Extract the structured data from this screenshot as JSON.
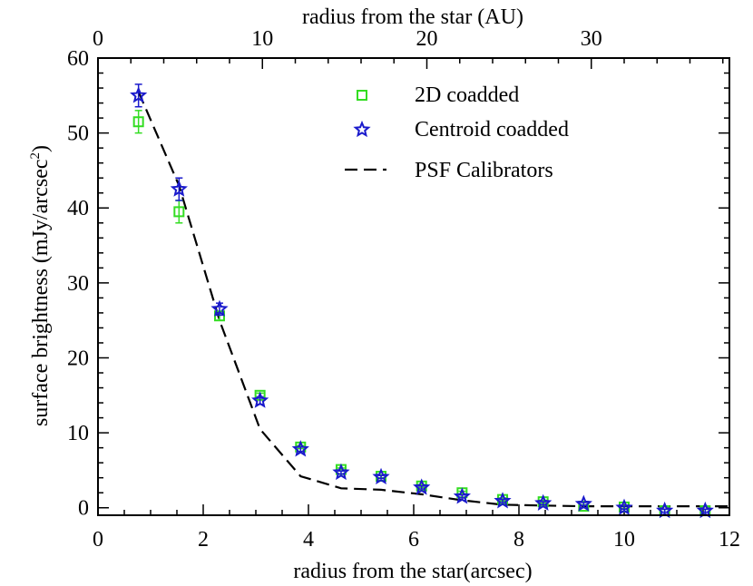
{
  "chart_data": {
    "type": "scatter",
    "xlabel": "radius from the star(arcsec)",
    "ylabel": "surface brightness (mJy/arcsec",
    "ylabel_sup": "2",
    "ylabel_close": ")",
    "top_xlabel": "radius from the star (AU)",
    "xlim": [
      0,
      12
    ],
    "ylim": [
      -1,
      60
    ],
    "top_xlim": [
      0,
      38.4
    ],
    "x_ticks": [
      0,
      2,
      4,
      6,
      8,
      10,
      12
    ],
    "y_ticks": [
      0,
      10,
      20,
      30,
      40,
      50,
      60
    ],
    "top_x_ticks": [
      0,
      10,
      20,
      30
    ],
    "legend_position": "top-right",
    "series": [
      {
        "name": "2D coadded",
        "marker": "square",
        "color": "#33dd22",
        "points": [
          {
            "x": 0.77,
            "y": 51.5,
            "err": 1.5
          },
          {
            "x": 1.54,
            "y": 39.5,
            "err": 1.5
          },
          {
            "x": 2.31,
            "y": 25.6,
            "err": 0.6
          },
          {
            "x": 3.08,
            "y": 15.0,
            "err": 0.3
          },
          {
            "x": 3.85,
            "y": 8.1,
            "err": 0.2
          },
          {
            "x": 4.62,
            "y": 5.1,
            "err": 0.2
          },
          {
            "x": 5.38,
            "y": 4.2,
            "err": 0.2
          },
          {
            "x": 6.15,
            "y": 2.9,
            "err": 0.2
          },
          {
            "x": 6.92,
            "y": 2.0,
            "err": 0.2
          },
          {
            "x": 7.69,
            "y": 1.1,
            "err": 0.2
          },
          {
            "x": 8.46,
            "y": 0.8,
            "err": 0.2
          },
          {
            "x": 9.23,
            "y": 0.2,
            "err": 0.2
          },
          {
            "x": 10.0,
            "y": 0.1,
            "err": 0.2
          },
          {
            "x": 10.77,
            "y": -0.4,
            "err": 0.2
          },
          {
            "x": 11.54,
            "y": -0.4,
            "err": 0.2
          }
        ]
      },
      {
        "name": "Centroid coadded",
        "marker": "star",
        "color": "#1a1acc",
        "points": [
          {
            "x": 0.77,
            "y": 55.0,
            "err": 1.5
          },
          {
            "x": 1.54,
            "y": 42.5,
            "err": 1.5
          },
          {
            "x": 2.31,
            "y": 26.5,
            "err": 0.8
          },
          {
            "x": 3.08,
            "y": 14.3,
            "err": 0.5
          },
          {
            "x": 3.85,
            "y": 7.8,
            "err": 0.3
          },
          {
            "x": 4.62,
            "y": 4.7,
            "err": 0.2
          },
          {
            "x": 5.38,
            "y": 4.1,
            "err": 0.2
          },
          {
            "x": 6.15,
            "y": 2.7,
            "err": 0.2
          },
          {
            "x": 6.92,
            "y": 1.5,
            "err": 0.2
          },
          {
            "x": 7.69,
            "y": 0.9,
            "err": 0.2
          },
          {
            "x": 8.46,
            "y": 0.6,
            "err": 0.2
          },
          {
            "x": 9.23,
            "y": 0.5,
            "err": 0.2
          },
          {
            "x": 10.0,
            "y": 0.0,
            "err": 0.2
          },
          {
            "x": 10.77,
            "y": -0.4,
            "err": 0.2
          },
          {
            "x": 11.54,
            "y": -0.4,
            "err": 0.2
          }
        ]
      },
      {
        "name": "PSF Calibrators",
        "marker": "dashed-line",
        "color": "#000000",
        "points": [
          {
            "x": 0.77,
            "y": 55.5
          },
          {
            "x": 1.54,
            "y": 43.0
          },
          {
            "x": 2.31,
            "y": 25.0
          },
          {
            "x": 3.08,
            "y": 10.5
          },
          {
            "x": 3.85,
            "y": 4.2
          },
          {
            "x": 4.62,
            "y": 2.6
          },
          {
            "x": 5.38,
            "y": 2.4
          },
          {
            "x": 6.15,
            "y": 1.8
          },
          {
            "x": 6.92,
            "y": 1.0
          },
          {
            "x": 7.69,
            "y": 0.4
          },
          {
            "x": 8.46,
            "y": 0.3
          },
          {
            "x": 9.23,
            "y": 0.2
          },
          {
            "x": 10.0,
            "y": 0.2
          },
          {
            "x": 10.77,
            "y": 0.2
          },
          {
            "x": 11.54,
            "y": 0.2
          },
          {
            "x": 12.0,
            "y": 0.2
          }
        ]
      }
    ]
  }
}
